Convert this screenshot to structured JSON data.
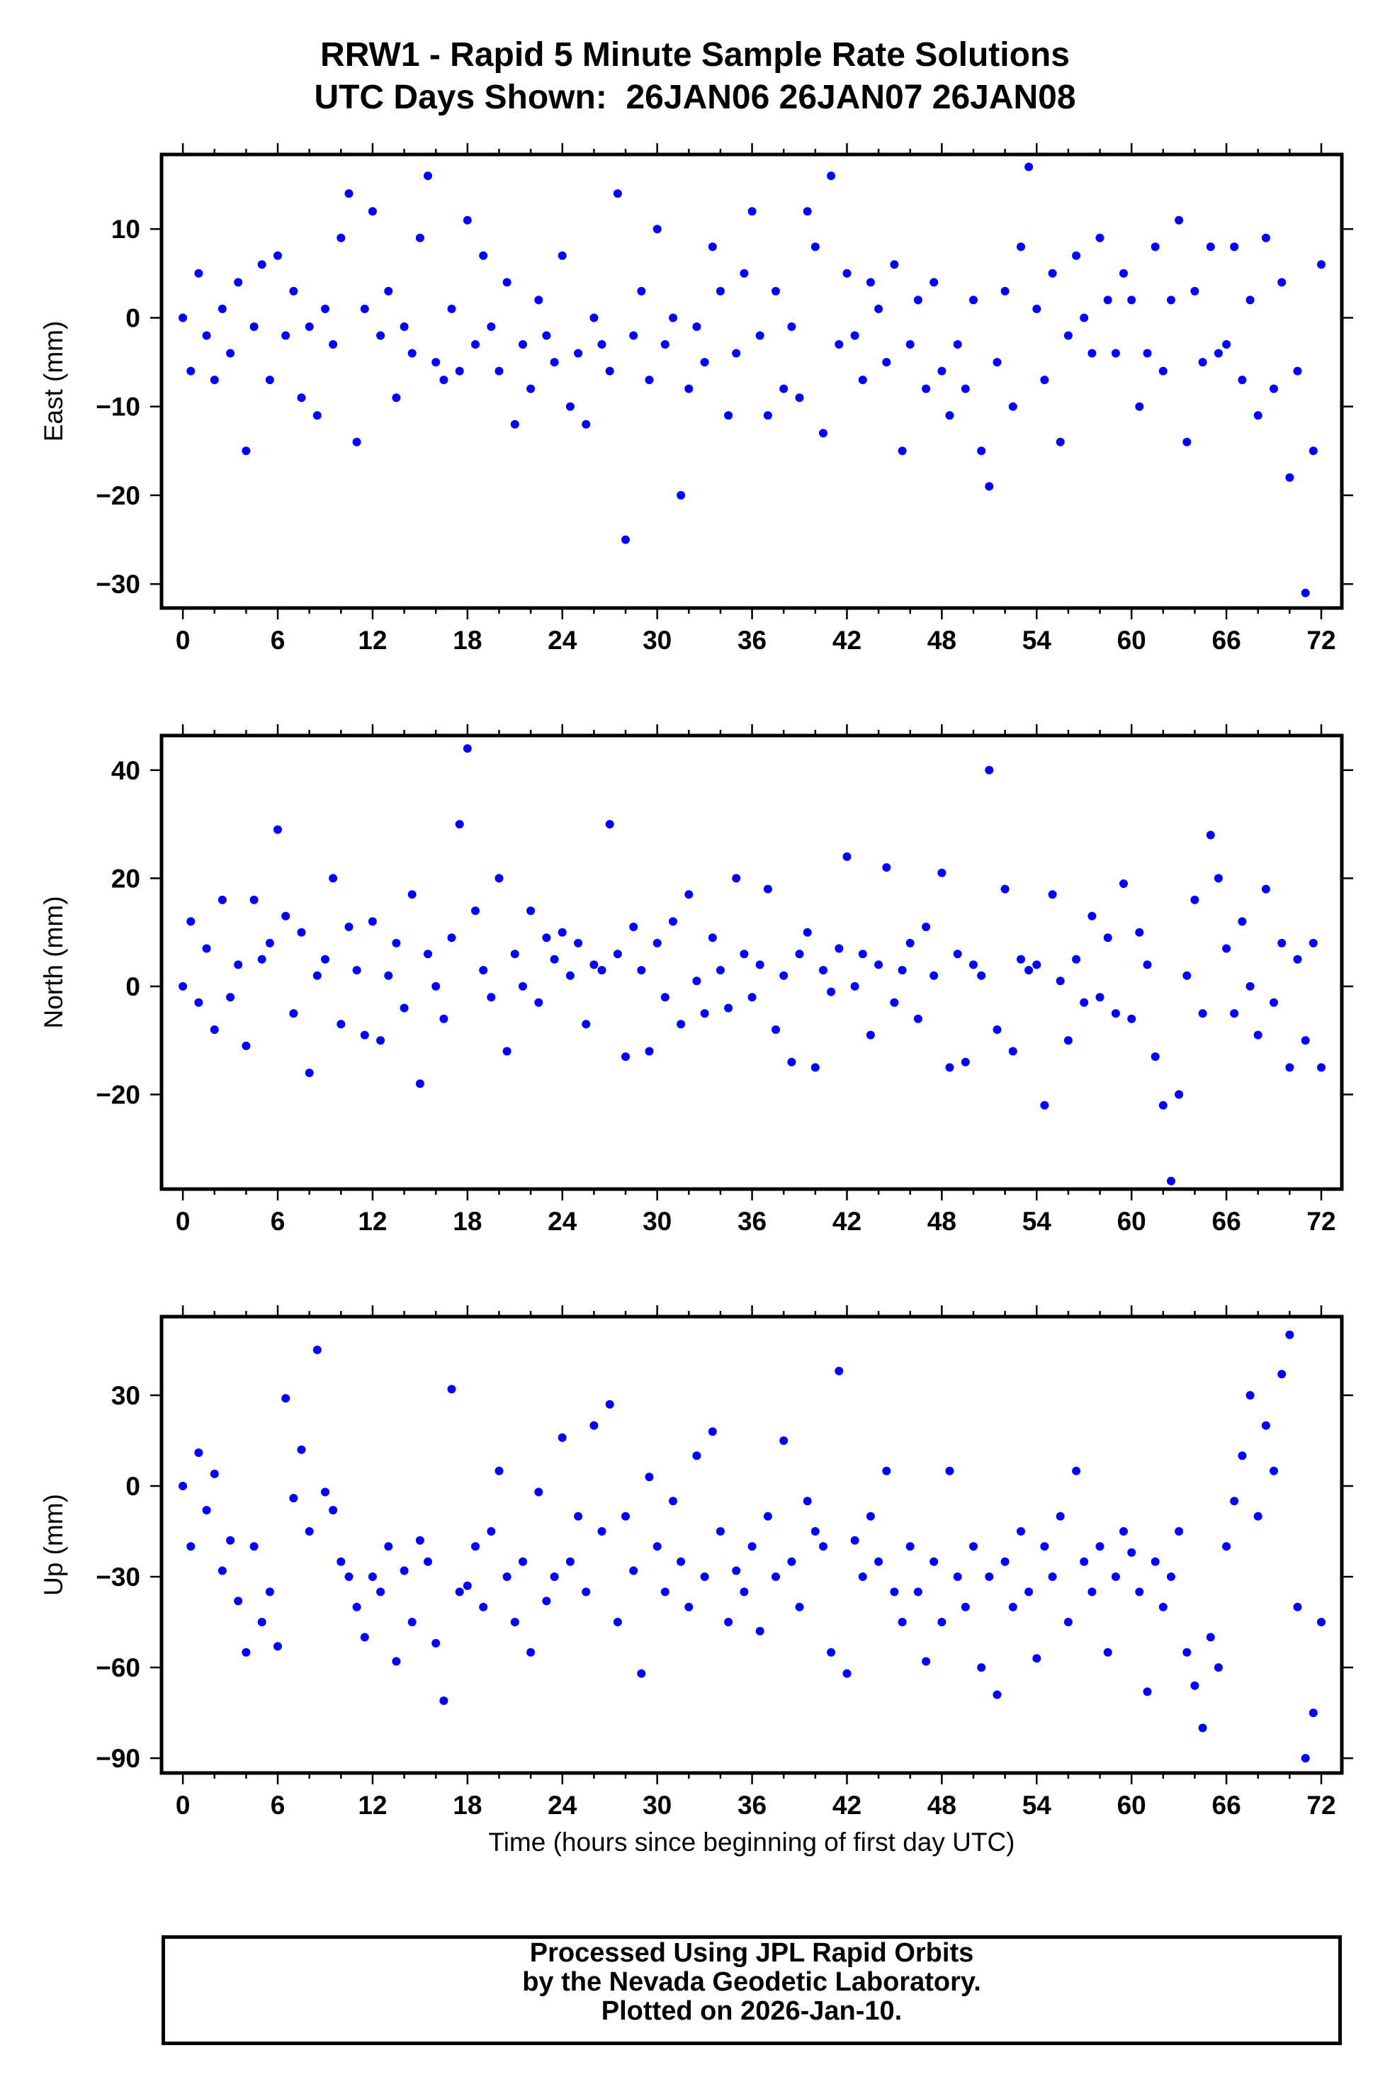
{
  "title": {
    "line1": "RRW1 - Rapid 5 Minute Sample Rate Solutions",
    "line2": "UTC Days Shown:  26JAN06 26JAN07 26JAN08"
  },
  "footer": {
    "line1": "Processed Using JPL Rapid Orbits",
    "line2": "by the Nevada Geodetic Laboratory.",
    "line3": "Plotted on 2026-Jan-10."
  },
  "colors": {
    "points": "#0000ff",
    "frame": "#000000"
  },
  "chart_data": [
    {
      "type": "scatter",
      "name": "east",
      "ylabel": "East (mm)",
      "xlabel": "",
      "xlim": [
        -1.35,
        73.3
      ],
      "ylim": [
        -32.7,
        18.4
      ],
      "xticks": [
        0,
        6,
        12,
        18,
        24,
        30,
        36,
        42,
        48,
        54,
        60,
        66,
        72
      ],
      "yticks": [
        -30,
        -20,
        -10,
        0,
        10
      ],
      "x_start": 0,
      "x_step": 0.5,
      "values": [
        0,
        -6,
        5,
        -2,
        -7,
        1,
        -4,
        4,
        -15,
        -1,
        6,
        -7,
        7,
        -2,
        3,
        -9,
        -1,
        -11,
        1,
        -3,
        9,
        14,
        -14,
        1,
        12,
        -2,
        3,
        -9,
        -1,
        -4,
        9,
        16,
        -5,
        -7,
        1,
        -6,
        11,
        -3,
        7,
        -1,
        -6,
        4,
        -12,
        -3,
        -8,
        2,
        -2,
        -5,
        7,
        -10,
        -4,
        -12,
        0,
        -3,
        -6,
        14,
        -25,
        -2,
        3,
        -7,
        10,
        -3,
        0,
        -20,
        -8,
        -1,
        -5,
        8,
        3,
        -11,
        -4,
        5,
        12,
        -2,
        -11,
        3,
        -8,
        -1,
        -9,
        12,
        8,
        -13,
        16,
        -3,
        5,
        -2,
        -7,
        4,
        1,
        -5,
        6,
        -15,
        -3,
        2,
        -8,
        4,
        -6,
        -11,
        -3,
        -8,
        2,
        -15,
        -19,
        -5,
        3,
        -10,
        8,
        17,
        1,
        -7,
        5,
        -14,
        -2,
        7,
        0,
        -4,
        9,
        2,
        -4,
        5,
        2,
        -10,
        -4,
        8,
        -6,
        2,
        11,
        -14,
        3,
        -5,
        8,
        -4,
        -3,
        8,
        -7,
        2,
        -11,
        9,
        -8,
        4,
        -18,
        -6,
        -31,
        -15,
        6
      ]
    },
    {
      "type": "scatter",
      "name": "north",
      "ylabel": "North (mm)",
      "xlabel": "",
      "xlim": [
        -1.35,
        73.3
      ],
      "ylim": [
        -37.5,
        46.4
      ],
      "xticks": [
        0,
        6,
        12,
        18,
        24,
        30,
        36,
        42,
        48,
        54,
        60,
        66,
        72
      ],
      "yticks": [
        -20,
        0,
        20,
        40
      ],
      "x_start": 0,
      "x_step": 0.5,
      "values": [
        0,
        12,
        -3,
        7,
        -8,
        16,
        -2,
        4,
        -11,
        16,
        5,
        8,
        29,
        13,
        -5,
        10,
        -16,
        2,
        5,
        20,
        -7,
        11,
        3,
        -9,
        12,
        -10,
        2,
        8,
        -4,
        17,
        -18,
        6,
        0,
        -6,
        9,
        30,
        44,
        14,
        3,
        -2,
        20,
        -12,
        6,
        0,
        14,
        -3,
        9,
        5,
        10,
        2,
        8,
        -7,
        4,
        3,
        30,
        6,
        -13,
        11,
        3,
        -12,
        8,
        -2,
        12,
        -7,
        17,
        1,
        -5,
        9,
        3,
        -4,
        20,
        6,
        -2,
        4,
        18,
        -8,
        2,
        -14,
        6,
        10,
        -15,
        3,
        -1,
        7,
        24,
        0,
        6,
        -9,
        4,
        22,
        -3,
        3,
        8,
        -6,
        11,
        2,
        21,
        -15,
        6,
        -14,
        4,
        2,
        40,
        -8,
        18,
        -12,
        5,
        3,
        4,
        -22,
        17,
        1,
        -10,
        5,
        -3,
        13,
        -2,
        9,
        -5,
        19,
        -6,
        10,
        4,
        -13,
        -22,
        -36,
        -20,
        2,
        16,
        -5,
        28,
        20,
        7,
        -5,
        12,
        0,
        -9,
        18,
        -3,
        8,
        -15,
        5,
        -10,
        8,
        -15
      ]
    },
    {
      "type": "scatter",
      "name": "up",
      "ylabel": "Up (mm)",
      "xlabel": "Time (hours since beginning of first day UTC)",
      "xlim": [
        -1.35,
        73.3
      ],
      "ylim": [
        -94.9,
        56
      ],
      "xticks": [
        0,
        6,
        12,
        18,
        24,
        30,
        36,
        42,
        48,
        54,
        60,
        66,
        72
      ],
      "yticks": [
        -90,
        -60,
        -30,
        0,
        30
      ],
      "x_start": 0,
      "x_step": 0.5,
      "values": [
        0,
        -20,
        11,
        -8,
        4,
        -28,
        -18,
        -38,
        -55,
        -20,
        -45,
        -35,
        -53,
        29,
        -4,
        12,
        -15,
        45,
        -2,
        -8,
        -25,
        -30,
        -40,
        -50,
        -30,
        -35,
        -20,
        -58,
        -28,
        -45,
        -18,
        -25,
        -52,
        -71,
        32,
        -35,
        -33,
        -20,
        -40,
        -15,
        5,
        -30,
        -45,
        -25,
        -55,
        -2,
        -38,
        -30,
        16,
        -25,
        -10,
        -35,
        20,
        -15,
        27,
        -45,
        -10,
        -28,
        -62,
        3,
        -20,
        -35,
        -5,
        -25,
        -40,
        10,
        -30,
        18,
        -15,
        -45,
        -28,
        -35,
        -20,
        -48,
        -10,
        -30,
        15,
        -25,
        -40,
        -5,
        -15,
        -20,
        -55,
        38,
        -62,
        -18,
        -30,
        -10,
        -25,
        5,
        -35,
        -45,
        -20,
        -35,
        -58,
        -25,
        -45,
        5,
        -30,
        -40,
        -20,
        -60,
        -30,
        -69,
        -25,
        -40,
        -15,
        -35,
        -57,
        -20,
        -30,
        -10,
        -45,
        5,
        -25,
        -35,
        -20,
        -55,
        -30,
        -15,
        -22,
        -35,
        -68,
        -25,
        -40,
        -30,
        -15,
        -55,
        -66,
        -80,
        -50,
        -60,
        -20,
        -5,
        10,
        30,
        -10,
        20,
        5,
        37,
        50,
        -40,
        -90,
        -75,
        -45
      ]
    }
  ]
}
